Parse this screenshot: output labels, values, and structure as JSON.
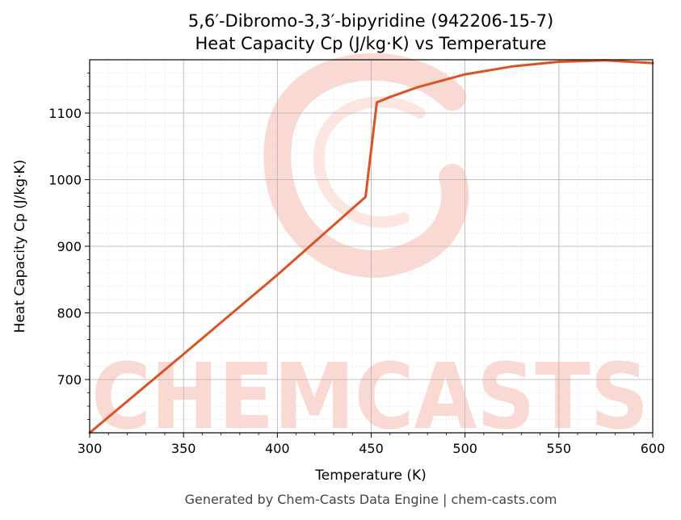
{
  "chart_data": {
    "type": "line",
    "title": "5,6′-Dibromo-3,3′-bipyridine (942206-15-7)",
    "subtitle": "Heat Capacity Cp (J/kg·K) vs Temperature",
    "xlabel": "Temperature (K)",
    "ylabel": "Heat Capacity Cp (J/kg·K)",
    "xlim": [
      300,
      600
    ],
    "ylim": [
      620,
      1180
    ],
    "x_ticks": [
      300,
      350,
      400,
      450,
      500,
      550,
      600
    ],
    "y_ticks": [
      700,
      800,
      900,
      1000,
      1100
    ],
    "grid": true,
    "minor_grid": true,
    "series": [
      {
        "color": "#d95323",
        "x": [
          300,
          350,
          400,
          447,
          453,
          460,
          475,
          500,
          525,
          550,
          575,
          600
        ],
        "y": [
          620,
          738,
          857,
          974,
          1116,
          1124,
          1139,
          1158,
          1170,
          1177,
          1179,
          1175
        ]
      }
    ]
  },
  "watermark": {
    "text": "CHEMCASTS",
    "color": "#fbd5cf"
  },
  "footer": "Generated by Chem-Casts Data Engine | chem-casts.com"
}
